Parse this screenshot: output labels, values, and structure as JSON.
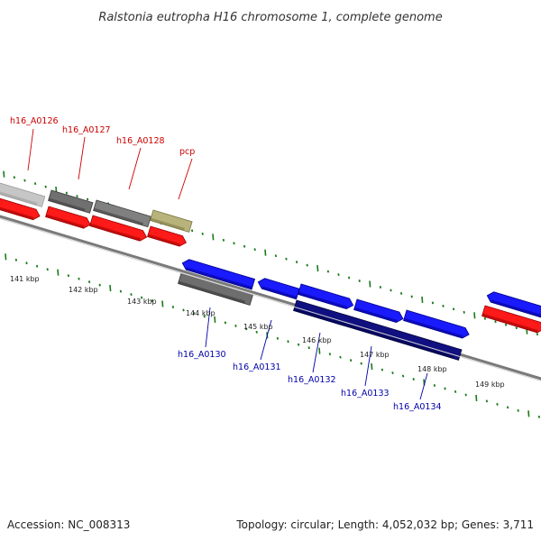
{
  "title": "Ralstonia eutropha H16 chromosome 1, complete genome",
  "footer": {
    "accession": "Accession: NC_008313",
    "stats": "Topology: circular; Length: 4,052,032 bp; Genes: 3,711"
  },
  "colors": {
    "backbone": "#7a7a7a",
    "tick": "#1a7a1a",
    "label_top": "#cc0000",
    "label_bottom": "#0000aa"
  },
  "tick_labels": [
    "141 kbp",
    "142 kbp",
    "143 kbp",
    "144 kbp",
    "145 kbp",
    "146 kbp",
    "147 kbp",
    "148 kbp",
    "149 kbp"
  ],
  "top_labels": [
    "h16_A0126",
    "h16_A0127",
    "h16_A0128",
    "pcp"
  ],
  "bottom_labels": [
    "h16_A0130",
    "h16_A0131",
    "h16_A0132",
    "h16_A0133",
    "h16_A0134"
  ]
}
